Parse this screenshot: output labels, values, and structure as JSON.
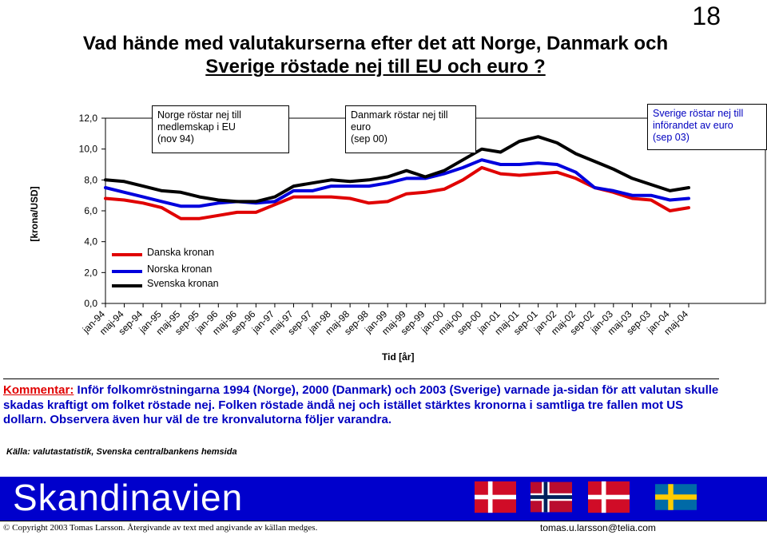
{
  "page": {
    "number": "18"
  },
  "title": {
    "line1": "Vad hände med valutakurserna efter det att Norge, Danmark och",
    "line2": "Sverige röstade nej till EU och euro ?"
  },
  "annotations": {
    "norge": [
      "Norge röstar nej till",
      "medlemskap i EU",
      "(nov 94)"
    ],
    "danmark": [
      "Danmark röstar nej till",
      "euro",
      "(sep 00)"
    ],
    "sverige": [
      "Sverige röstar nej till",
      "införandet av euro",
      "(sep 03)"
    ]
  },
  "colors": {
    "danska": "#e00000",
    "norska": "#0000dd",
    "svenska": "#000000",
    "banner": "#0000cc",
    "comment": "#0000c0"
  },
  "chart_data": {
    "type": "line",
    "ylabel": "[krona/USD]",
    "xlabel": "Tid [år]",
    "ylim": [
      0,
      12
    ],
    "yticks": [
      "0,0",
      "2,0",
      "4,0",
      "6,0",
      "8,0",
      "10,0",
      "12,0"
    ],
    "x_tick_labels": [
      "jan-94",
      "maj-94",
      "sep-94",
      "jan-95",
      "maj-95",
      "sep-95",
      "jan-96",
      "maj-96",
      "sep-96",
      "jan-97",
      "maj-97",
      "sep-97",
      "jan-98",
      "maj-98",
      "sep-98",
      "jan-99",
      "maj-99",
      "sep-99",
      "jan-00",
      "maj-00",
      "sep-00",
      "jan-01",
      "maj-01",
      "sep-01",
      "jan-02",
      "maj-02",
      "sep-02",
      "jan-03",
      "maj-03",
      "sep-03",
      "jan-04",
      "maj-04"
    ],
    "series": [
      {
        "name": "Danska kronan",
        "color": "#e00000",
        "values": [
          6.8,
          6.7,
          6.5,
          6.2,
          5.5,
          5.5,
          5.7,
          5.9,
          5.9,
          6.4,
          6.9,
          6.9,
          6.9,
          6.8,
          6.5,
          6.6,
          7.1,
          7.2,
          7.4,
          8.0,
          8.8,
          8.4,
          8.3,
          8.4,
          8.5,
          8.1,
          7.5,
          7.2,
          6.8,
          6.7,
          6.0,
          6.2
        ]
      },
      {
        "name": "Norska kronan",
        "color": "#0000dd",
        "values": [
          7.5,
          7.2,
          6.9,
          6.6,
          6.3,
          6.3,
          6.5,
          6.6,
          6.5,
          6.6,
          7.3,
          7.3,
          7.6,
          7.6,
          7.6,
          7.8,
          8.1,
          8.1,
          8.4,
          8.8,
          9.3,
          9.0,
          9.0,
          9.1,
          9.0,
          8.5,
          7.5,
          7.3,
          7.0,
          7.0,
          6.7,
          6.8
        ]
      },
      {
        "name": "Svenska kronan",
        "color": "#000000",
        "values": [
          8.0,
          7.9,
          7.6,
          7.3,
          7.2,
          6.9,
          6.7,
          6.6,
          6.6,
          6.9,
          7.6,
          7.8,
          8.0,
          7.9,
          8.0,
          8.2,
          8.6,
          8.2,
          8.6,
          9.3,
          10.0,
          9.8,
          10.5,
          10.8,
          10.4,
          9.7,
          9.2,
          8.7,
          8.1,
          7.7,
          7.3,
          7.5
        ]
      }
    ],
    "legend": [
      "Danska kronan",
      "Norska kronan",
      "Svenska kronan"
    ]
  },
  "comment": {
    "label": "Kommentar:",
    "text": "Inför folkomröstningarna 1994 (Norge), 2000 (Danmark) och 2003 (Sverige) varnade ja-sidan för att valutan skulle skadas kraftigt om folket röstade nej. Folken röstade ändå nej och istället stärktes kronorna i samtliga tre fallen mot US dollarn. Observera även hur väl de tre kronvalutorna följer varandra."
  },
  "source": "Källa: valutastatistik, Svenska centralbankens hemsida",
  "banner": {
    "title": "Skandinavien",
    "flags": [
      "denmark-flag",
      "norway-flag",
      "denmark-flag",
      "sweden-flag"
    ]
  },
  "footer": {
    "copyright": "©  Copyright 2003 Tomas Larsson.  Återgivande av text med angivande av källan medges.",
    "email": "tomas.u.larsson@telia.com"
  }
}
